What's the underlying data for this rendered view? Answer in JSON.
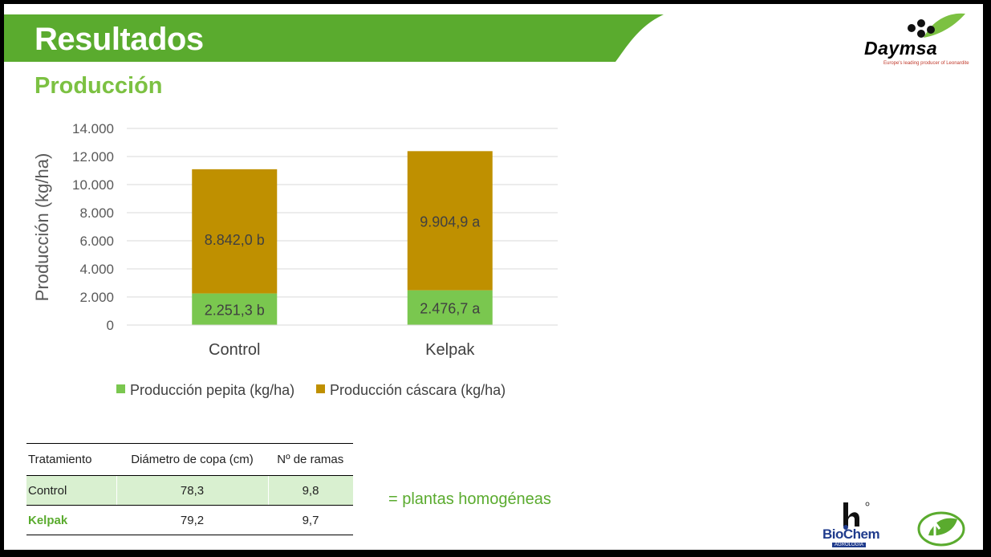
{
  "header": {
    "title": "Resultados",
    "subtitle": "Producción"
  },
  "logos": {
    "daymsa": {
      "name": "Daymsa",
      "tagline": "Europe's leading producer of Leonardite"
    },
    "biochem": {
      "name": "BioChem",
      "sub": "AGROLOGIA"
    }
  },
  "colors": {
    "brand_green": "#5aab2e",
    "light_green": "#7cc142",
    "cascara": "#bf9000",
    "pepita": "#7ac74f"
  },
  "chart_data": {
    "type": "bar",
    "stacked": true,
    "categories": [
      "Control",
      "Kelpak"
    ],
    "series": [
      {
        "name": "Producción pepita (kg/ha)",
        "values": [
          2251.3,
          2476.7
        ],
        "labels": [
          "2.251,3 b",
          "2.476,7 a"
        ],
        "color": "#7ac74f"
      },
      {
        "name": "Producción cáscara (kg/ha)",
        "values": [
          8842.0,
          9904.9
        ],
        "labels": [
          "8.842,0 b",
          "9.904,9 a"
        ],
        "color": "#bf9000"
      }
    ],
    "ylabel": "Producción (kg/ha)",
    "ylim": [
      0,
      14000
    ],
    "yticks": [
      "0",
      "2.000",
      "4.000",
      "6.000",
      "8.000",
      "10.000",
      "12.000",
      "14.000"
    ],
    "grid": true,
    "legend": "bottom"
  },
  "table": {
    "headers": [
      "Tratamiento",
      "Diámetro de copa (cm)",
      "Nº de ramas"
    ],
    "rows": [
      [
        "Control",
        "78,3",
        "9,8"
      ],
      [
        "Kelpak",
        "79,2",
        "9,7"
      ]
    ]
  },
  "note": "= plantas homogéneas"
}
